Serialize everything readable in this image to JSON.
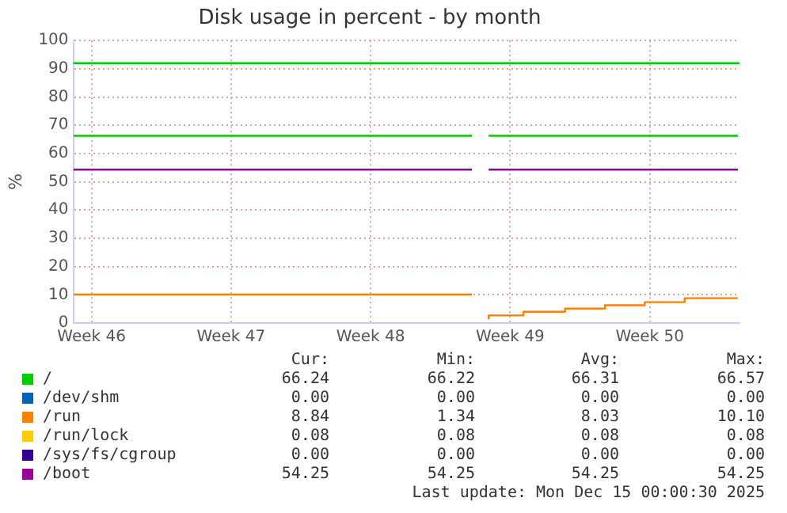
{
  "chart_data": {
    "type": "line",
    "title": "Disk usage in percent - by month",
    "ylabel": "%",
    "xlim": [
      "2025-11-11T14:00",
      "2025-12-15T00:00"
    ],
    "xticks": [
      {
        "value": "2025-11-12T12:00",
        "label": "Week 46"
      },
      {
        "value": "2025-11-19T12:00",
        "label": "Week 47"
      },
      {
        "value": "2025-11-26T12:00",
        "label": "Week 48"
      },
      {
        "value": "2025-12-03T12:00",
        "label": "Week 49"
      },
      {
        "value": "2025-12-10T12:00",
        "label": "Week 50"
      }
    ],
    "ylim": [
      0,
      100
    ],
    "yticks": [
      0,
      10,
      20,
      30,
      40,
      50,
      60,
      70,
      80,
      90,
      100
    ],
    "grid": true,
    "legend": "bottom",
    "ref_lines": [
      {
        "axis": "y",
        "value": 92,
        "color": "#00cc00"
      }
    ],
    "series": [
      {
        "name": "/",
        "color": "#00cc00",
        "x": [
          "2025-11-11T14:00",
          "2025-12-01T14:00",
          "2025-12-02T00:00",
          "2025-12-02T10:00",
          "2025-12-14T22:00"
        ],
        "values": [
          66.3,
          66.3,
          null,
          66.3,
          66.3
        ]
      },
      {
        "name": "/dev/shm",
        "color": "#0066b3"
      },
      {
        "name": "/run",
        "type": "step",
        "color": "#ff8000",
        "x": [
          "2025-11-11T14:00",
          "2025-12-01T14:00",
          "2025-12-02T00:00",
          "2025-12-02T10:00",
          "2025-12-04T04:00",
          "2025-12-06T06:00",
          "2025-12-08T06:00",
          "2025-12-10T06:00",
          "2025-12-12T06:00",
          "2025-12-14T08:00",
          "2025-12-14T22:00"
        ],
        "values": [
          10.1,
          10.1,
          null,
          1.3,
          2.7,
          4.0,
          5.1,
          6.3,
          7.4,
          8.8,
          8.8
        ]
      },
      {
        "name": "/run/lock",
        "color": "#ffcc00"
      },
      {
        "name": "/sys/fs/cgroup",
        "color": "#330099"
      },
      {
        "name": "/boot",
        "color": "#990099",
        "x": [
          "2025-11-11T14:00",
          "2025-12-01T14:00",
          "2025-12-02T00:00",
          "2025-12-02T10:00",
          "2025-12-14T22:00"
        ],
        "values": [
          54.3,
          54.3,
          null,
          54.3,
          54.3
        ]
      }
    ],
    "annotations": [
      "Cur:",
      "Min:",
      "Avg:",
      "Max:",
      "66.24",
      "66.22",
      "66.31",
      "66.57",
      "0.00",
      "0.00",
      "0.00",
      "0.00",
      "8.84",
      "1.34",
      "8.03",
      "10.10",
      "0.08",
      "0.08",
      "0.08",
      "0.08",
      "0.00",
      "0.00",
      "0.00",
      "0.00",
      "54.25",
      "54.25",
      "54.25",
      "54.25",
      "Last update: Mon Dec 15 00:00:30 2025"
    ]
  }
}
